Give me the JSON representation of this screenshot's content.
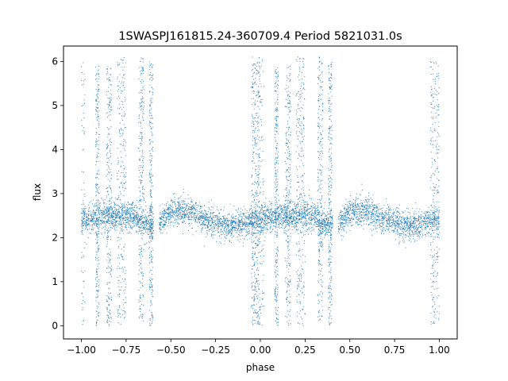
{
  "chart_data": {
    "type": "scatter",
    "title": "1SWASPJ161815.24-360709.4 Period 5821031.0s",
    "xlabel": "phase",
    "ylabel": "flux",
    "xlim": [
      -1.1,
      1.1
    ],
    "ylim": [
      -0.3,
      6.35
    ],
    "x_ticks": [
      -1.0,
      -0.75,
      -0.5,
      -0.25,
      0.0,
      0.25,
      0.5,
      0.75,
      1.0
    ],
    "x_tick_labels": [
      "−1.00",
      "−0.75",
      "−0.50",
      "−0.25",
      "0.00",
      "0.25",
      "0.50",
      "0.75",
      "1.00"
    ],
    "y_ticks": [
      0,
      1,
      2,
      3,
      4,
      5,
      6
    ],
    "y_tick_labels": [
      "0",
      "1",
      "2",
      "3",
      "4",
      "5",
      "6"
    ],
    "grid": false,
    "legend": false,
    "point_color": "#1f77b4",
    "profile": {
      "phase": [
        0.0,
        0.05,
        0.1,
        0.15,
        0.2,
        0.25,
        0.3,
        0.35,
        0.4,
        0.45,
        0.5,
        0.55,
        0.6,
        0.65,
        0.7,
        0.75,
        0.8,
        0.85,
        0.9,
        0.95,
        1.0
      ],
      "flux": [
        2.4,
        2.45,
        2.5,
        2.5,
        2.5,
        2.5,
        2.5,
        2.3,
        2.3,
        2.35,
        2.6,
        2.6,
        2.6,
        2.5,
        2.4,
        2.35,
        2.3,
        2.25,
        2.3,
        2.4,
        2.4
      ]
    },
    "scatter_bands": [
      {
        "phase_from": -0.05,
        "phase_to": 0.02,
        "flux_from": 0.0,
        "flux_to": 6.1
      },
      {
        "phase_from": 0.08,
        "phase_to": 0.1,
        "flux_from": 0.0,
        "flux_to": 5.9
      },
      {
        "phase_from": 0.14,
        "phase_to": 0.17,
        "flux_from": 0.0,
        "flux_to": 5.9
      },
      {
        "phase_from": 0.2,
        "phase_to": 0.25,
        "flux_from": 0.0,
        "flux_to": 6.1
      },
      {
        "phase_from": 0.32,
        "phase_to": 0.35,
        "flux_from": 0.1,
        "flux_to": 6.1
      },
      {
        "phase_from": 0.38,
        "phase_to": 0.4,
        "flux_from": 0.0,
        "flux_to": 6.0
      },
      {
        "phase_from": 0.95,
        "phase_to": 1.0,
        "flux_from": 0.0,
        "flux_to": 6.0
      }
    ]
  }
}
